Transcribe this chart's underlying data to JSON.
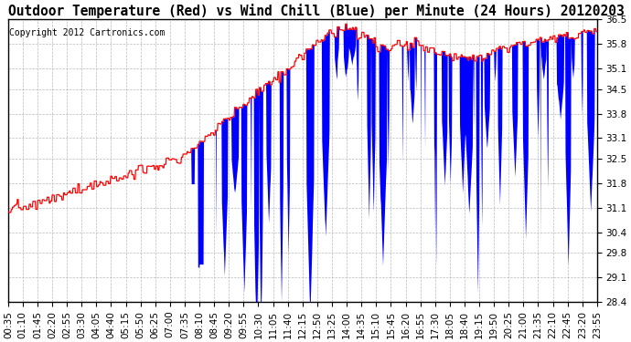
{
  "title": "Outdoor Temperature (Red) vs Wind Chill (Blue) per Minute (24 Hours) 20120203",
  "copyright": "Copyright 2012 Cartronics.com",
  "yticks": [
    28.4,
    29.1,
    29.8,
    30.4,
    31.1,
    31.8,
    32.5,
    33.1,
    33.8,
    34.5,
    35.1,
    35.8,
    36.5
  ],
  "ymin": 28.4,
  "ymax": 36.5,
  "xtick_labels": [
    "00:35",
    "01:10",
    "01:45",
    "02:20",
    "02:55",
    "03:30",
    "04:05",
    "04:40",
    "05:15",
    "05:50",
    "06:25",
    "07:00",
    "07:35",
    "08:10",
    "08:45",
    "09:20",
    "09:55",
    "10:30",
    "11:05",
    "11:40",
    "12:15",
    "12:50",
    "13:25",
    "14:00",
    "14:35",
    "15:10",
    "15:45",
    "16:20",
    "16:55",
    "17:30",
    "18:05",
    "18:40",
    "19:15",
    "19:50",
    "20:25",
    "21:00",
    "21:35",
    "22:10",
    "22:45",
    "23:20",
    "23:55"
  ],
  "background_color": "#ffffff",
  "grid_color": "#aaaaaa",
  "red_color": "#ff0000",
  "blue_color": "#0000ff",
  "title_fontsize": 10.5,
  "tick_fontsize": 7.5,
  "copyright_fontsize": 7
}
